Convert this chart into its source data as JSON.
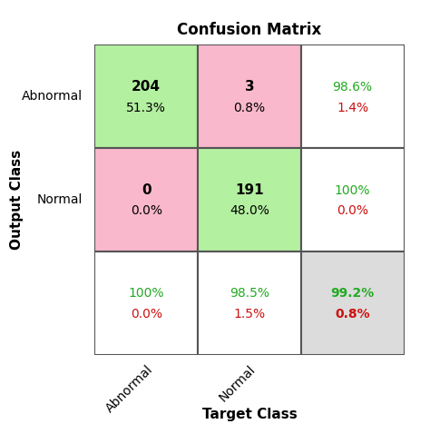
{
  "title": "Confusion Matrix",
  "xlabel": "Target Class",
  "ylabel": "Output Class",
  "row_labels": [
    "Abnormal",
    "Normal"
  ],
  "col_labels": [
    "Abnormal",
    "Normal"
  ],
  "cells": [
    {
      "row": 0,
      "col": 0,
      "bg_color": "#b3f0a0",
      "main_text": "204",
      "main_pct": "51.3%",
      "main_text_color": "#000000"
    },
    {
      "row": 0,
      "col": 1,
      "bg_color": "#f9b8cc",
      "main_text": "3",
      "main_pct": "0.8%",
      "main_text_color": "#000000"
    },
    {
      "row": 1,
      "col": 0,
      "bg_color": "#f9b8cc",
      "main_text": "0",
      "main_pct": "0.0%",
      "main_text_color": "#000000"
    },
    {
      "row": 1,
      "col": 1,
      "bg_color": "#b3f0a0",
      "main_text": "191",
      "main_pct": "48.0%",
      "main_text_color": "#000000"
    }
  ],
  "row_summary": [
    {
      "green_text": "98.6%",
      "red_text": "1.4%"
    },
    {
      "green_text": "100%",
      "red_text": "0.0%"
    }
  ],
  "col_summary": [
    {
      "green_text": "100%",
      "red_text": "0.0%"
    },
    {
      "green_text": "98.5%",
      "red_text": "1.5%"
    }
  ],
  "corner_summary": {
    "green_text": "99.2%",
    "red_text": "0.8%"
  },
  "row_summary_bg": "#ffffff",
  "col_summary_bg": "#ffffff",
  "corner_summary_bg": "#dcdcdc",
  "grid_color": "#555555",
  "green_color": "#22aa22",
  "red_color": "#cc1111",
  "cell_text_fontsize": 11,
  "pct_fontsize": 10,
  "label_fontsize": 10,
  "axis_label_fontsize": 11,
  "title_fontsize": 12,
  "summary_fontsize": 10
}
